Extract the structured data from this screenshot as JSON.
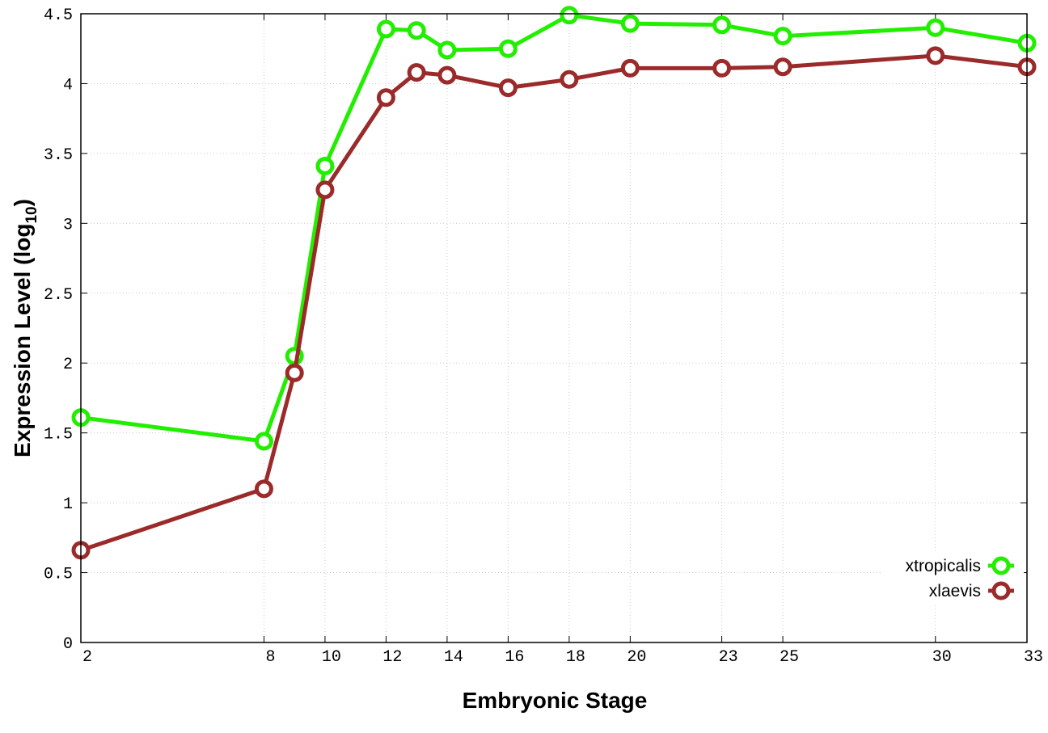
{
  "chart_data": {
    "type": "line",
    "xlabel": "Embryonic Stage",
    "ylabel_main": "Expression Level (log",
    "ylabel_sub": "10",
    "ylabel_close": ")",
    "x_ticks": [
      2,
      8,
      10,
      12,
      14,
      16,
      18,
      20,
      23,
      25,
      30,
      33
    ],
    "y_ticks": [
      "0",
      "0.5",
      "1",
      "1.5",
      "2",
      "2.5",
      "3",
      "3.5",
      "4",
      "4.5"
    ],
    "xlim": [
      2,
      33
    ],
    "ylim": [
      0,
      4.5
    ],
    "grid": true,
    "legend_position": "bottom-right",
    "series": [
      {
        "name": "xtropicalis",
        "color": "#22ee00",
        "x": [
          2,
          8,
          9,
          10,
          12,
          13,
          14,
          16,
          18,
          20,
          23,
          25,
          30,
          33
        ],
        "y": [
          1.61,
          1.44,
          2.05,
          3.41,
          4.39,
          4.38,
          4.24,
          4.25,
          4.49,
          4.43,
          4.42,
          4.34,
          4.4,
          4.29
        ]
      },
      {
        "name": "xlaevis",
        "color": "#9b2a2a",
        "x": [
          2,
          8,
          9,
          10,
          12,
          13,
          14,
          16,
          18,
          20,
          23,
          25,
          30,
          33
        ],
        "y": [
          0.66,
          1.1,
          1.93,
          3.24,
          3.9,
          4.08,
          4.06,
          3.97,
          4.03,
          4.11,
          4.11,
          4.12,
          4.2,
          4.12
        ]
      }
    ]
  }
}
